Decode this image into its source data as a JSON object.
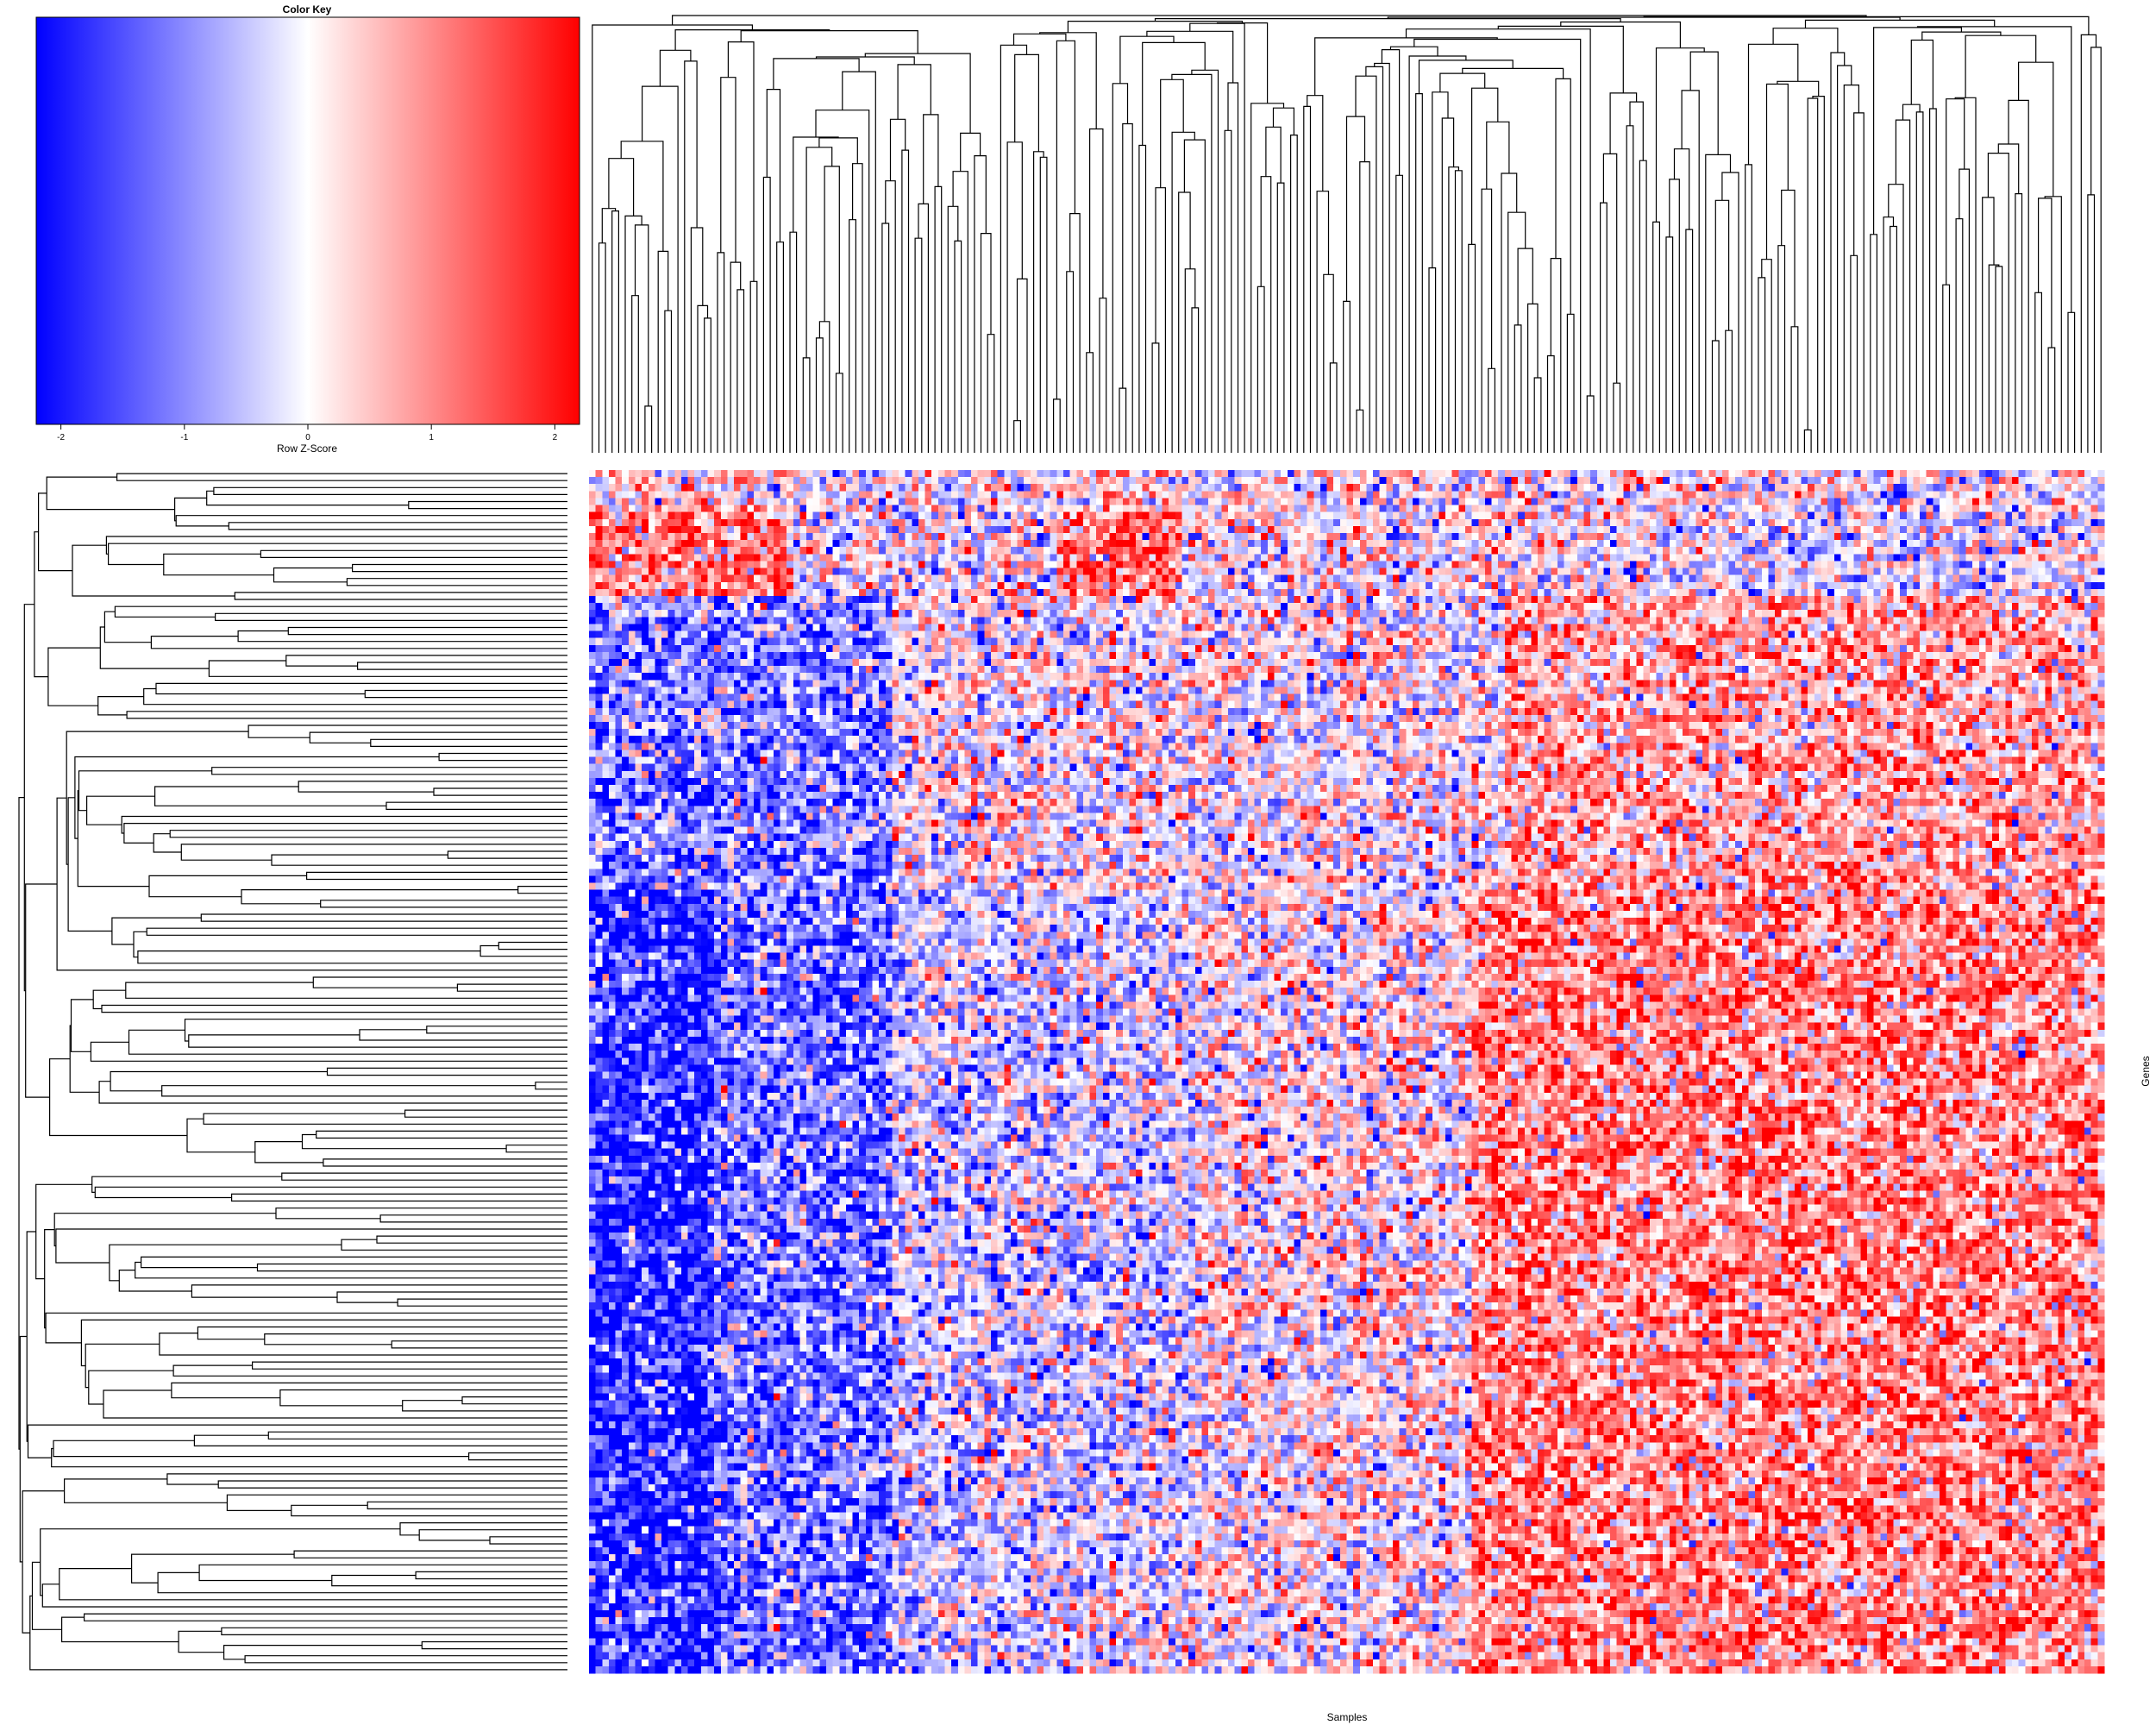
{
  "chart_data": {
    "type": "heatmap",
    "title": "",
    "xlabel": "Samples",
    "ylabel": "Genes",
    "color_key": {
      "title": "Color Key",
      "label": "Row Z-Score",
      "range": [
        -2.2,
        2.2
      ],
      "ticks": [
        -2,
        -1,
        0,
        1,
        2
      ],
      "tick_labels": [
        "-2",
        "-1",
        "0",
        "1",
        "2"
      ],
      "colors": {
        "low": "#0000ff",
        "mid": "#ffffff",
        "high": "#ff0000"
      }
    },
    "n_columns": 230,
    "n_rows": 172,
    "value_bands": [
      {
        "rows": [
          0,
          18
        ],
        "pattern": "mixed with red blocks at columns 0-30 and 70-90"
      },
      {
        "rows": [
          18,
          60
        ],
        "pattern": "blue at left, mixed in middle, red patches at right"
      },
      {
        "rows": [
          60,
          172
        ],
        "pattern": "strongly blue at left (columns 0-25), mixed middle, red at right (columns 140-230)"
      }
    ],
    "row_dendrogram": true,
    "column_dendrogram": true,
    "legend_position": "top-left",
    "grid": false
  }
}
